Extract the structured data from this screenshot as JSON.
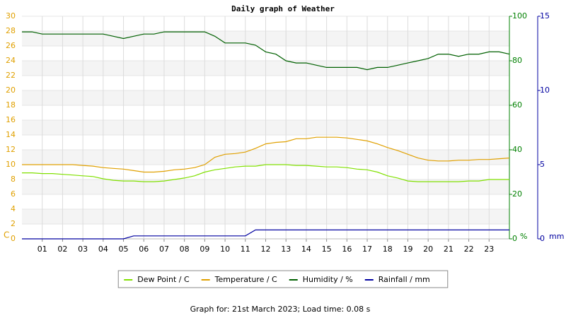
{
  "chart_data": {
    "type": "line",
    "title": "Daily graph of Weather",
    "footer": "Graph for: 21st March 2023; Load time: 0.08 s",
    "y_label": "C",
    "y2_label": "%",
    "y3_label": "mm",
    "x": [
      0,
      0.5,
      1,
      1.5,
      2,
      2.5,
      3,
      3.5,
      4,
      4.5,
      5,
      5.5,
      6,
      6.5,
      7,
      7.5,
      8,
      8.5,
      9,
      9.5,
      10,
      10.5,
      11,
      11.5,
      12,
      12.5,
      13,
      13.5,
      14,
      14.5,
      15,
      15.5,
      16,
      16.5,
      17,
      17.5,
      18,
      18.5,
      19,
      19.5,
      20,
      20.5,
      21,
      21.5,
      22,
      22.5,
      23,
      23.5,
      24
    ],
    "xlim": [
      0,
      24
    ],
    "xticks": [
      {
        "value": 1,
        "label": "01"
      },
      {
        "value": 2,
        "label": "02"
      },
      {
        "value": 3,
        "label": "03"
      },
      {
        "value": 4,
        "label": "04"
      },
      {
        "value": 5,
        "label": "05"
      },
      {
        "value": 6,
        "label": "06"
      },
      {
        "value": 7,
        "label": "07"
      },
      {
        "value": 8,
        "label": "08"
      },
      {
        "value": 9,
        "label": "09"
      },
      10,
      11,
      12,
      13,
      14,
      15,
      16,
      17,
      18,
      19,
      20,
      21,
      22,
      23
    ],
    "ylim": [
      0,
      30
    ],
    "yticks": [
      0,
      2,
      4,
      6,
      8,
      10,
      12,
      14,
      16,
      18,
      20,
      22,
      24,
      26,
      28,
      30
    ],
    "y2lim": [
      0,
      100
    ],
    "y2ticks": [
      0,
      20,
      40,
      60,
      80,
      100
    ],
    "y3lim": [
      0,
      15
    ],
    "y3ticks": [
      0,
      5,
      10,
      15
    ],
    "grid": true,
    "series": [
      {
        "name": "Dew Point / C",
        "color": "#80e000",
        "values": [
          8.9,
          8.9,
          8.8,
          8.8,
          8.7,
          8.6,
          8.5,
          8.4,
          8.1,
          7.9,
          7.8,
          7.8,
          7.7,
          7.7,
          7.8,
          8.0,
          8.2,
          8.5,
          9.0,
          9.3,
          9.5,
          9.7,
          9.8,
          9.8,
          10.0,
          10.0,
          10.0,
          9.9,
          9.9,
          9.8,
          9.7,
          9.7,
          9.6,
          9.4,
          9.3,
          9.0,
          8.5,
          8.2,
          7.8,
          7.7,
          7.7,
          7.7,
          7.7,
          7.7,
          7.8,
          7.8,
          8.0,
          8.0,
          8.0
        ]
      },
      {
        "name": "Temperature / C",
        "color": "#e0a000",
        "values": [
          10,
          10,
          10,
          10,
          10,
          10,
          9.9,
          9.8,
          9.6,
          9.5,
          9.4,
          9.2,
          9.0,
          9.0,
          9.1,
          9.3,
          9.4,
          9.6,
          10.0,
          11.0,
          11.4,
          11.5,
          11.7,
          12.2,
          12.8,
          13.0,
          13.1,
          13.5,
          13.5,
          13.7,
          13.7,
          13.7,
          13.6,
          13.4,
          13.2,
          12.8,
          12.3,
          11.9,
          11.4,
          10.9,
          10.6,
          10.5,
          10.5,
          10.6,
          10.6,
          10.7,
          10.7,
          10.8,
          10.9
        ]
      },
      {
        "name": "Humidity / %",
        "color": "#006000",
        "axis": "y2",
        "values": [
          93,
          93,
          92,
          92,
          92,
          92,
          92,
          92,
          92,
          91,
          90,
          91,
          92,
          92,
          93,
          93,
          93,
          93,
          93,
          91,
          88,
          88,
          88,
          87,
          84,
          83,
          80,
          79,
          79,
          78,
          77,
          77,
          77,
          77,
          76,
          77,
          77,
          78,
          79,
          80,
          81,
          83,
          83,
          82,
          83,
          83,
          84,
          84,
          83
        ]
      },
      {
        "name": "Rainfall / mm",
        "color": "#0000a0",
        "axis": "y3",
        "values": [
          0,
          0,
          0,
          0,
          0,
          0,
          0,
          0,
          0,
          0,
          0,
          0.2,
          0.2,
          0.2,
          0.2,
          0.2,
          0.2,
          0.2,
          0.2,
          0.2,
          0.2,
          0.2,
          0.2,
          0.6,
          0.6,
          0.6,
          0.6,
          0.6,
          0.6,
          0.6,
          0.6,
          0.6,
          0.6,
          0.6,
          0.6,
          0.6,
          0.6,
          0.6,
          0.6,
          0.6,
          0.6,
          0.6,
          0.6,
          0.6,
          0.6,
          0.6,
          0.6,
          0.6,
          0.6
        ]
      }
    ]
  }
}
